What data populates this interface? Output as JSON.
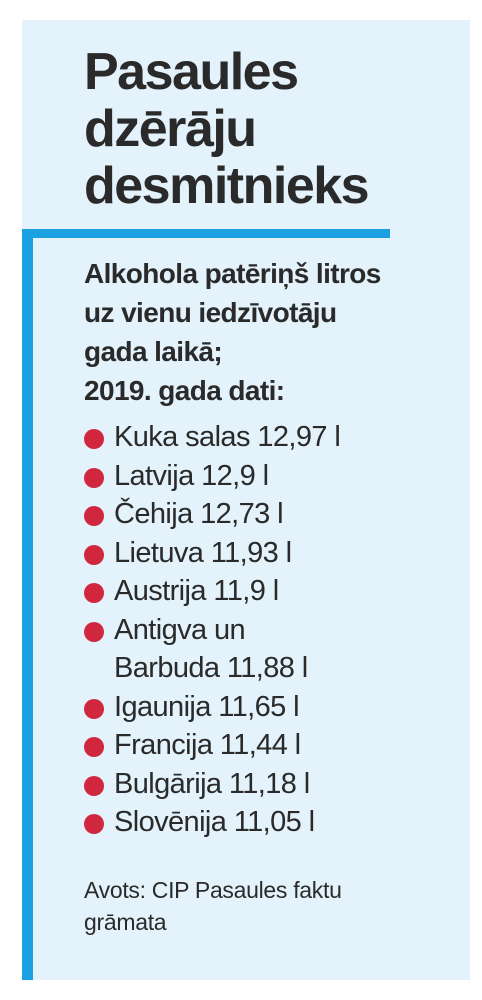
{
  "title_lines": [
    "Pasaules",
    "dzērāju",
    "desmitnieks"
  ],
  "subtitle_lines": [
    "Alkohola patēriņš litros",
    "uz vienu iedzīvotāju",
    "gada laikā;",
    "2019. gada dati:"
  ],
  "list": [
    {
      "lines": [
        "Kuka salas 12,97 l"
      ]
    },
    {
      "lines": [
        "Latvija 12,9 l"
      ]
    },
    {
      "lines": [
        "Čehija 12,73 l"
      ]
    },
    {
      "lines": [
        "Lietuva 11,93 l"
      ]
    },
    {
      "lines": [
        "Austrija 11,9 l"
      ]
    },
    {
      "lines": [
        "Antigva un",
        "Barbuda 11,88 l"
      ]
    },
    {
      "lines": [
        "Igaunija 11,65 l"
      ]
    },
    {
      "lines": [
        "Francija 11,44 l"
      ]
    },
    {
      "lines": [
        "Bulgārija 11,18 l"
      ]
    },
    {
      "lines": [
        "Slovēnija 11,05 l"
      ]
    }
  ],
  "source_lines": [
    "Avots: CIP Pasaules faktu",
    "grāmata"
  ],
  "colors": {
    "panel_bg": "#e3f2fb",
    "accent_bar": "#1ba1e2",
    "bullet": "#d0273f",
    "text": "#2a2a2a"
  }
}
